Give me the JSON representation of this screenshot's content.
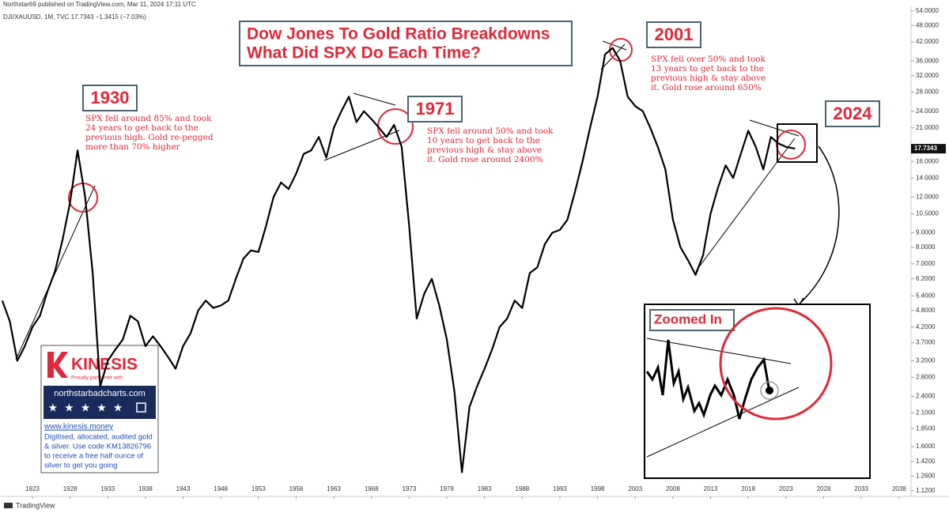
{
  "header": "Northstar69 published on TradingView.com, Mar 11, 2024 17:11 UTC",
  "footer": "TradingView",
  "ad": {
    "brand": "KINESIS",
    "tagline": "Proudly partnered with",
    "site": "northstarbadcharts.com",
    "url": "www.kinesis.money",
    "lines": [
      "Digitised, allocated, audited gold",
      "& silver. Use code KM13826796",
      "to receive a free half ounce of",
      "silver to get you going"
    ]
  },
  "inset": {
    "label": "Zoomed In"
  },
  "chart_data": {
    "type": "line",
    "title": [
      "Dow Jones To Gold Ratio Breakdowns",
      "What Did SPX Do Each Time?"
    ],
    "symbol": "DJI/XAUUSD, 1M, TVC 17.7343 −1.3415 (−7.03%)",
    "log_scale": true,
    "grid": false,
    "x": [
      1919,
      1920,
      1921,
      1922,
      1923,
      1924,
      1925,
      1926,
      1927,
      1928,
      1929,
      1930,
      1931,
      1932,
      1933,
      1934,
      1935,
      1936,
      1937,
      1938,
      1939,
      1940,
      1941,
      1942,
      1943,
      1944,
      1945,
      1946,
      1947,
      1948,
      1949,
      1950,
      1951,
      1952,
      1953,
      1954,
      1955,
      1956,
      1957,
      1958,
      1959,
      1960,
      1961,
      1962,
      1963,
      1964,
      1965,
      1966,
      1967,
      1968,
      1969,
      1970,
      1971,
      1972,
      1973,
      1974,
      1975,
      1976,
      1977,
      1978,
      1979,
      1980,
      1981,
      1982,
      1983,
      1984,
      1985,
      1986,
      1987,
      1988,
      1989,
      1990,
      1991,
      1992,
      1993,
      1994,
      1995,
      1996,
      1997,
      1998,
      1999,
      2000,
      2001,
      2002,
      2003,
      2004,
      2005,
      2006,
      2007,
      2008,
      2009,
      2010,
      2011,
      2012,
      2013,
      2014,
      2015,
      2016,
      2017,
      2018,
      2019,
      2020,
      2021,
      2022,
      2023,
      2024.2
    ],
    "series": [
      {
        "name": "DJI/XAUUSD",
        "color": "#000000",
        "values": [
          5.2,
          4.4,
          3.2,
          3.6,
          4.2,
          4.6,
          5.6,
          6.6,
          8.5,
          11.5,
          17.5,
          12.0,
          6.5,
          2.6,
          3.2,
          3.5,
          3.8,
          4.6,
          4.4,
          3.6,
          3.9,
          3.6,
          3.3,
          3.0,
          3.6,
          4.0,
          4.8,
          5.2,
          4.9,
          5.0,
          5.2,
          6.2,
          7.3,
          7.8,
          7.7,
          9.5,
          12.0,
          13.5,
          12.8,
          14.5,
          17.0,
          17.5,
          19.5,
          16.5,
          21.0,
          24.0,
          27.0,
          22.0,
          24.0,
          22.5,
          21.0,
          19.5,
          21.5,
          18.0,
          9.5,
          4.5,
          5.5,
          6.2,
          5.0,
          3.8,
          2.5,
          1.3,
          2.2,
          2.6,
          3.0,
          3.5,
          4.2,
          4.5,
          5.2,
          4.9,
          6.5,
          6.8,
          8.2,
          9.0,
          9.2,
          10.0,
          12.5,
          16.0,
          21.0,
          27.0,
          38.0,
          40.0,
          36.0,
          27.0,
          25.0,
          24.0,
          21.0,
          18.0,
          15.0,
          10.0,
          8.0,
          7.2,
          6.4,
          7.5,
          10.5,
          13.0,
          15.5,
          14.0,
          17.0,
          20.5,
          18.0,
          15.0,
          19.5,
          18.5,
          18.0,
          17.7343
        ]
      }
    ],
    "xlim": [
      1918.7,
      2039.6
    ],
    "xticks": [
      1923,
      1928,
      1933,
      1938,
      1943,
      1948,
      1953,
      1958,
      1963,
      1968,
      1973,
      1978,
      1983,
      1988,
      1993,
      1998,
      2003,
      2008,
      2013,
      2018,
      2023,
      2028,
      2033,
      2038
    ],
    "ylim": [
      1.07,
      56
    ],
    "yticks": [
      {
        "value": 54,
        "label": "54.0000"
      },
      {
        "value": 48,
        "label": "48.0000"
      },
      {
        "value": 42,
        "label": "42.0000"
      },
      {
        "value": 36,
        "label": "36.0000"
      },
      {
        "value": 32,
        "label": "32.0000"
      },
      {
        "value": 28,
        "label": "28.0000"
      },
      {
        "value": 24,
        "label": "24.0000"
      },
      {
        "value": 21,
        "label": "21.0000"
      },
      {
        "value": 18,
        "label": "18.0000"
      },
      {
        "value": 16,
        "label": "16.0000"
      },
      {
        "value": 14,
        "label": "14.0000"
      },
      {
        "value": 12,
        "label": "12.0000"
      },
      {
        "value": 10.5,
        "label": "10.5000"
      },
      {
        "value": 9,
        "label": "9.0000"
      },
      {
        "value": 8,
        "label": "8.0000"
      },
      {
        "value": 7,
        "label": "7.0000"
      },
      {
        "value": 6.2,
        "label": "6.2000"
      },
      {
        "value": 5.4,
        "label": "5.4000"
      },
      {
        "value": 4.8,
        "label": "4.8000"
      },
      {
        "value": 4.2,
        "label": "4.2000"
      },
      {
        "value": 3.7,
        "label": "3.7000"
      },
      {
        "value": 3.2,
        "label": "3.2000"
      },
      {
        "value": 2.8,
        "label": "2.8000"
      },
      {
        "value": 2.4,
        "label": "2.4000"
      },
      {
        "value": 2.1,
        "label": "2.1000"
      },
      {
        "value": 1.85,
        "label": "1.8500"
      },
      {
        "value": 1.6,
        "label": "1.6000"
      },
      {
        "value": 1.42,
        "label": "1.4200"
      },
      {
        "value": 1.26,
        "label": "1.2600"
      },
      {
        "value": 1.12,
        "label": "1.1200"
      }
    ],
    "annotations": [
      {
        "label": "1930",
        "lines": [
          "SPX fell around 85% and took",
          "24 years to get back to the",
          "previous high. Gold re-pegged",
          "more than 70% higher"
        ]
      },
      {
        "label": "1971",
        "lines": [
          "SPX fell around 50% and took",
          "10 years to get back to the",
          "previous high & stay above",
          "it. Gold rose around 2400%"
        ]
      },
      {
        "label": "2001",
        "lines": [
          "SPX fell over 50% and took",
          "13 years to get back to the",
          "previous high & stay above",
          "it. Gold rose around 650%"
        ]
      },
      {
        "label": "2024",
        "lines": []
      }
    ]
  }
}
